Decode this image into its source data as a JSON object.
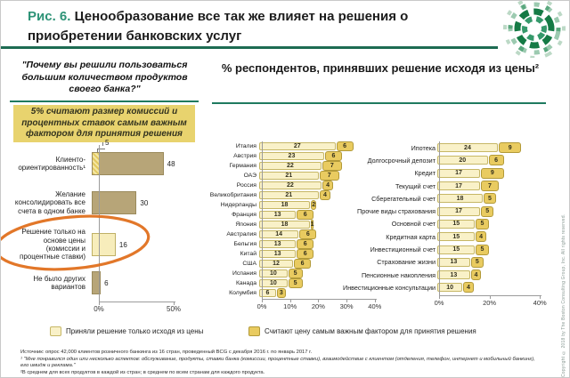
{
  "slide": {
    "title_prefix": "Рис. 6.",
    "title_text": " Ценообразование все так же влияет на решения о приобретении банковских услуг",
    "section_header": "% респондентов, принявших решение исходя из цены²",
    "copyright": "Copyright © 2018 by The Boston Consulting Group, Inc. All rights reserved."
  },
  "left_panel": {
    "question": "\"Почему вы решили пользоваться большим количеством продуктов своего банка?\"",
    "callout": "5% считают размер комиссий и процентных ставок самым важным фактором для принятия решения",
    "hatch_label": "5"
  },
  "legend": {
    "items": [
      {
        "swatch": "light",
        "label": "Приняли решение только исходя из цены"
      },
      {
        "swatch": "gold",
        "label": "Считают цену самым важным фактором для принятия решения"
      }
    ]
  },
  "footnotes": [
    "Источник: опрос 42,000 клиентов розничного банкинга из 16 стран, проведенный BCG с декабря 2016 г. по январь 2017 г.",
    "¹ \"Мне понравился один или несколько аспектов: обслуживание, продукты, ставки банка (комиссии, процентные ставки), взаимодействие с клиентом (отделения, телефон, интернет и мобильный банкинг), его имидж и реклама.\"",
    "²В среднем для всех продуктов в каждой из стран; в среднем по всем странам для каждого продукта."
  ],
  "colors": {
    "accent_teal": "#2e9377",
    "divider_green": "#1d6b52",
    "callout_bg": "#e8d36e",
    "bar_light": "#f9f1c8",
    "bar_light_border": "#c6b766",
    "bar_gold": "#e9cb60",
    "bar_gold_border": "#b29a39",
    "bar_dark": "#b7a578",
    "highlight_orange": "#e0701e"
  },
  "chart_data": [
    {
      "id": "reasons",
      "type": "bar",
      "orientation": "horizontal",
      "title": "\"Почему вы решили пользоваться большим количеством продуктов своего банка?\"",
      "xlim": [
        0,
        50
      ],
      "x_ticks": [
        "0%",
        "50%"
      ],
      "categories": [
        "Клиенто-ориентированность¹",
        "Желание консолидировать все счета в одном банке",
        "Решение только на основе цены (комиссии и процентные ставки)",
        "Не было других вариантов"
      ],
      "values": [
        48,
        30,
        16,
        6
      ],
      "hatched_overlay": {
        "category_index": 0,
        "value": 5,
        "label": "5"
      },
      "highlighted_index": 2,
      "grid": false
    },
    {
      "id": "countries",
      "type": "bar",
      "subtype": "stacked",
      "orientation": "horizontal",
      "xlim": [
        0,
        40
      ],
      "x_ticks": [
        "0%",
        "10%",
        "20%",
        "30%",
        "40%"
      ],
      "categories": [
        "Италия",
        "Австрия",
        "Германия",
        "ОАЭ",
        "Россия",
        "Великобритания",
        "Нидерланды",
        "Франция",
        "Япония",
        "Австралия",
        "Бельгия",
        "Китай",
        "США",
        "Испания",
        "Канада",
        "Колумбия"
      ],
      "series": [
        {
          "name": "Приняли решение только исходя из цены",
          "values": [
            27,
            23,
            22,
            21,
            22,
            21,
            18,
            13,
            18,
            14,
            13,
            13,
            12,
            10,
            10,
            6
          ]
        },
        {
          "name": "Считают цену самым важным фактором для принятия решения",
          "values": [
            6,
            6,
            7,
            7,
            4,
            4,
            2,
            6,
            1,
            6,
            6,
            6,
            6,
            5,
            5,
            3
          ]
        }
      ],
      "grid": false
    },
    {
      "id": "products",
      "type": "bar",
      "subtype": "stacked",
      "orientation": "horizontal",
      "xlim": [
        0,
        40
      ],
      "x_ticks": [
        "0%",
        "20%",
        "40%"
      ],
      "categories": [
        "Ипотека",
        "Долгосрочный депозит",
        "Кредит",
        "Текущий счет",
        "Сберегательный счет",
        "Прочие виды страхования",
        "Основной счет",
        "Кредитная карта",
        "Инвестиционный счет",
        "Страхование жизни",
        "Пенсионные накопления",
        "Инвестиционные консультации"
      ],
      "series": [
        {
          "name": "Приняли решение только исходя из цены",
          "values": [
            24,
            20,
            17,
            17,
            18,
            17,
            15,
            15,
            15,
            13,
            13,
            10
          ]
        },
        {
          "name": "Считают цену самым важным фактором для принятия решения",
          "values": [
            9,
            6,
            9,
            7,
            5,
            5,
            5,
            4,
            5,
            5,
            4,
            4
          ]
        }
      ],
      "grid": false
    }
  ]
}
